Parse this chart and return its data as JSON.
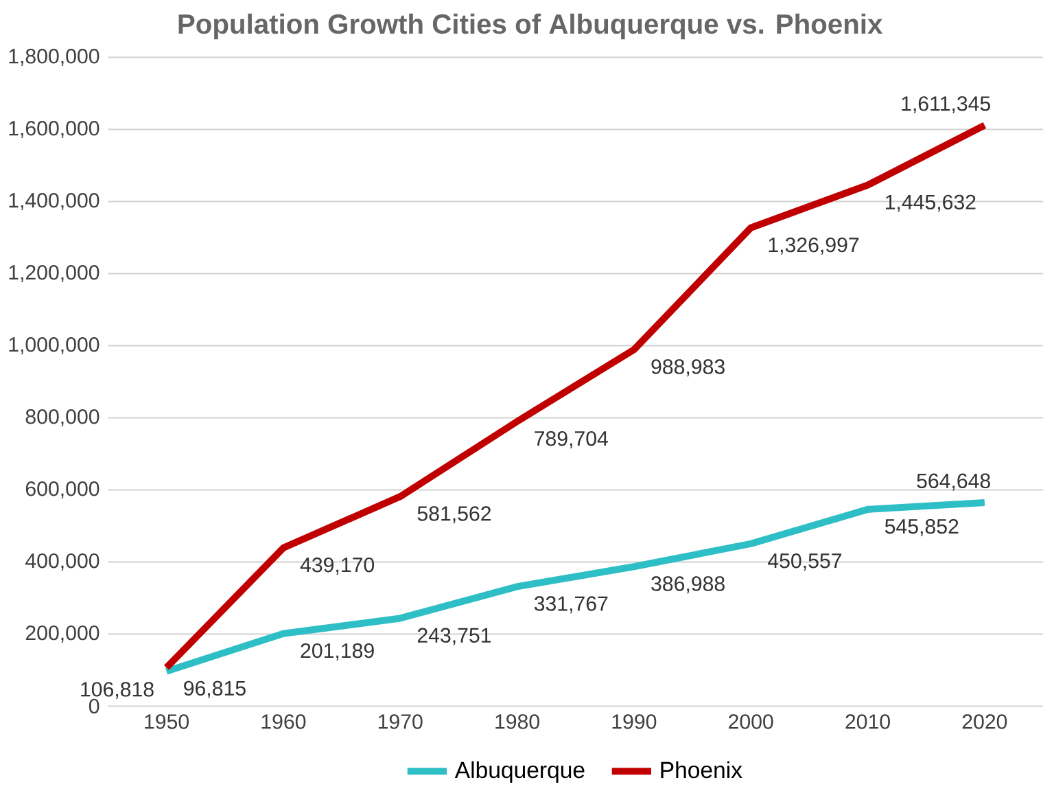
{
  "chart_data": {
    "type": "line",
    "title": "Population Growth Cities of Albuquerque vs. Phoenix",
    "categories": [
      "1950",
      "1960",
      "1970",
      "1980",
      "1990",
      "2000",
      "2010",
      "2020"
    ],
    "series": [
      {
        "name": "Albuquerque",
        "color": "#2ebfc6",
        "values": [
          96815,
          201189,
          243751,
          331767,
          386988,
          450557,
          545852,
          564648
        ],
        "value_labels": [
          "96,815",
          "201,189",
          "243,751",
          "331,767",
          "386,988",
          "450,557",
          "545,852",
          "564,648"
        ]
      },
      {
        "name": "Phoenix",
        "color": "#c00000",
        "values": [
          106818,
          439170,
          581562,
          789704,
          988983,
          1326997,
          1445632,
          1611345
        ],
        "value_labels": [
          "106,818",
          "439,170",
          "581,562",
          "789,704",
          "988,983",
          "1,326,997",
          "1,445,632",
          "1,611,345"
        ]
      }
    ],
    "ylim": [
      0,
      1800000
    ],
    "yticks": [
      {
        "value": 0,
        "label": "0"
      },
      {
        "value": 200000,
        "label": "200,000"
      },
      {
        "value": 400000,
        "label": "400,000"
      },
      {
        "value": 600000,
        "label": "600,000"
      },
      {
        "value": 800000,
        "label": "800,000"
      },
      {
        "value": 1000000,
        "label": "1,000,000"
      },
      {
        "value": 1200000,
        "label": "1,200,000"
      },
      {
        "value": 1400000,
        "label": "1,400,000"
      },
      {
        "value": 1600000,
        "label": "1,600,000"
      },
      {
        "value": 1800000,
        "label": "1,800,000"
      }
    ],
    "grid": "y",
    "legend": "bottom"
  }
}
